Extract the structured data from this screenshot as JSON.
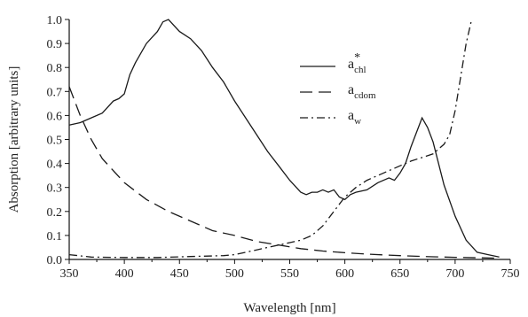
{
  "chart_data": {
    "type": "line",
    "xlabel": "Wavelength [nm]",
    "ylabel": "Absorption [arbitrary units]",
    "xlim": [
      350,
      750
    ],
    "ylim": [
      0,
      1.0
    ],
    "xticks": [
      350,
      400,
      450,
      500,
      550,
      600,
      650,
      700,
      750
    ],
    "yticks": [
      "0.0",
      "0.1",
      "0.2",
      "0.3",
      "0.4",
      "0.5",
      "0.6",
      "0.7",
      "0.8",
      "0.9",
      "1.0"
    ],
    "grid": false,
    "legend_position": "top-center",
    "series": [
      {
        "name": "a*chl",
        "legend_base": "a",
        "legend_sup": "*",
        "legend_sub": "chl",
        "style": "solid",
        "x": [
          350,
          360,
          370,
          380,
          390,
          395,
          400,
          405,
          410,
          420,
          430,
          435,
          440,
          450,
          460,
          470,
          480,
          490,
          500,
          510,
          520,
          530,
          540,
          550,
          560,
          565,
          570,
          575,
          580,
          585,
          590,
          595,
          600,
          605,
          610,
          620,
          630,
          640,
          645,
          650,
          655,
          660,
          665,
          670,
          675,
          680,
          690,
          700,
          710,
          720,
          730,
          740
        ],
        "y": [
          0.56,
          0.57,
          0.59,
          0.61,
          0.66,
          0.67,
          0.69,
          0.77,
          0.82,
          0.9,
          0.95,
          0.99,
          1.0,
          0.95,
          0.92,
          0.87,
          0.8,
          0.74,
          0.66,
          0.59,
          0.52,
          0.45,
          0.39,
          0.33,
          0.28,
          0.27,
          0.28,
          0.28,
          0.29,
          0.28,
          0.29,
          0.26,
          0.25,
          0.27,
          0.28,
          0.29,
          0.32,
          0.34,
          0.33,
          0.36,
          0.4,
          0.47,
          0.53,
          0.59,
          0.55,
          0.49,
          0.31,
          0.18,
          0.08,
          0.03,
          0.02,
          0.01
        ]
      },
      {
        "name": "acdom",
        "legend_base": "a",
        "legend_sup": "",
        "legend_sub": "cdom",
        "style": "dashed",
        "x": [
          350,
          360,
          370,
          380,
          400,
          420,
          440,
          460,
          480,
          500,
          520,
          540,
          560,
          580,
          600,
          620,
          650,
          680,
          700,
          740
        ],
        "y": [
          0.72,
          0.6,
          0.5,
          0.42,
          0.32,
          0.25,
          0.2,
          0.16,
          0.12,
          0.1,
          0.075,
          0.06,
          0.045,
          0.035,
          0.028,
          0.022,
          0.016,
          0.011,
          0.009,
          0.005
        ]
      },
      {
        "name": "aw",
        "legend_base": "a",
        "legend_sup": "",
        "legend_sub": "w",
        "style": "dashdot",
        "x": [
          350,
          370,
          400,
          430,
          460,
          490,
          500,
          510,
          520,
          530,
          540,
          550,
          560,
          570,
          580,
          590,
          600,
          610,
          620,
          640,
          660,
          680,
          690,
          695,
          700,
          705,
          710,
          715
        ],
        "y": [
          0.02,
          0.01,
          0.008,
          0.008,
          0.012,
          0.016,
          0.02,
          0.03,
          0.04,
          0.05,
          0.06,
          0.07,
          0.08,
          0.1,
          0.14,
          0.2,
          0.26,
          0.3,
          0.33,
          0.37,
          0.41,
          0.44,
          0.48,
          0.52,
          0.62,
          0.76,
          0.9,
          1.0
        ]
      }
    ]
  }
}
